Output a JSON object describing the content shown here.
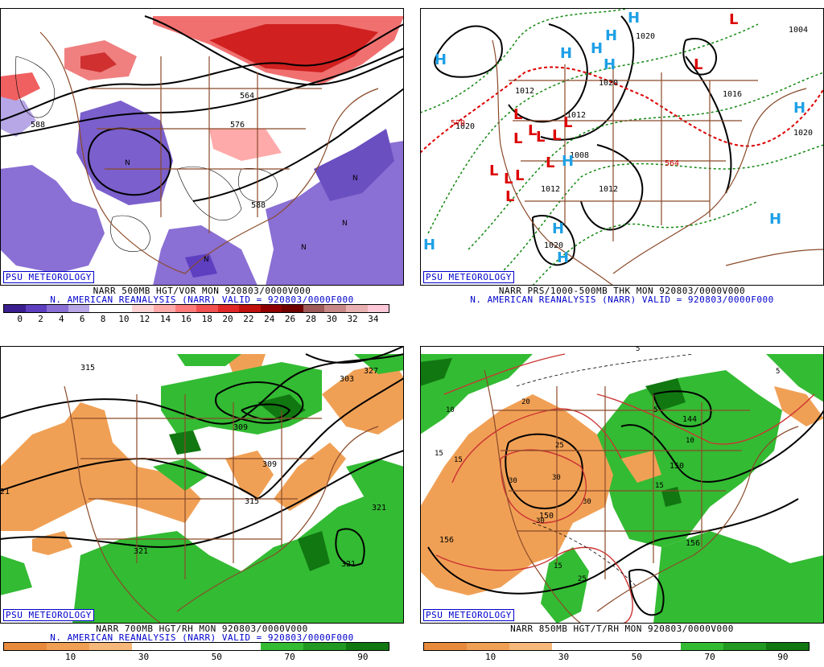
{
  "panels": [
    {
      "psu": "PSU METEOROLOGY",
      "line1": "NARR 500MB HGT/VOR MON 920803/0000V000",
      "line2": "N. AMERICAN REANALYSIS (NARR) VALID = 920803/0000F000",
      "colorbar": [
        "#3b1f8f",
        "#5d3fc0",
        "#8a6fd4",
        "#b7a7e6",
        "#ffffff",
        "#ffffff",
        "#ffd3d3",
        "#ffaaaa",
        "#ff7b7b",
        "#f05050",
        "#e02828",
        "#c01010",
        "#900000",
        "#700000",
        "#a05a5a",
        "#c88888",
        "#e8b0b0",
        "#ffc8d8"
      ],
      "ticks": [
        "0",
        "2",
        "4",
        "6",
        "8",
        "10",
        "12",
        "14",
        "16",
        "18",
        "20",
        "22",
        "24",
        "26",
        "28",
        "30",
        "32",
        "34"
      ],
      "labels": {
        "c588": "588",
        "c564": "564",
        "c576": "576",
        "c588b": "588"
      }
    },
    {
      "psu": "PSU METEOROLOGY",
      "line1": "NARR PRS/1000-500MB THK MON 920803/0000V000",
      "line2": "N. AMERICAN REANALYSIS (NARR) VALID = 920803/0000F000",
      "labels": {
        "p1020a": "1020",
        "p1020b": "1020",
        "p1020c": "1020",
        "p1012a": "1012",
        "p1012b": "1012",
        "p1012c": "1012",
        "p1012d": "1012",
        "p1004": "1004",
        "p1016": "1016",
        "p1020d": "1020",
        "p1020e": "1020",
        "t570": "570",
        "t564": "564",
        "p1008": "1008"
      },
      "highs": "H",
      "lows": "L"
    },
    {
      "psu": "PSU METEOROLOGY",
      "line1": "NARR 700MB HGT/RH MON 920803/0000V000",
      "line2": "N. AMERICAN REANALYSIS (NARR) VALID = 920803/0000F000",
      "colorbar": [
        "#e88a3c",
        "#f0a055",
        "#f5b87a",
        "#ffffff",
        "#ffffff",
        "#ffffff",
        "#33bb33",
        "#229922",
        "#117711"
      ],
      "ticks": [
        "10",
        "30",
        "50",
        "70",
        "90"
      ],
      "labels": {
        "h315a": "315",
        "h303": "303",
        "h309a": "309",
        "h309b": "309",
        "h315b": "315",
        "h321a": "321",
        "h321b": "321",
        "h321c": "321",
        "h327": "327",
        "h21": "21"
      }
    },
    {
      "psu": "PSU METEOROLOGY",
      "line1": "NARR 850MB HGT/T/RH MON 920803/0000V000",
      "colorbar": [
        "#e88a3c",
        "#f0a055",
        "#f5b87a",
        "#ffffff",
        "#ffffff",
        "#ffffff",
        "#33bb33",
        "#229922",
        "#117711"
      ],
      "ticks": [
        "10",
        "30",
        "50",
        "70",
        "90"
      ],
      "labels": {
        "z150a": "150",
        "z144": "144",
        "z156a": "156",
        "z156b": "156",
        "z150b": "150",
        "tk10a": "10",
        "tk15a": "15",
        "tk20": "20",
        "tk25a": "25",
        "tk30a": "30",
        "tk30b": "30",
        "tk30c": "30",
        "tk30d": "30",
        "tk15b": "15",
        "tk15c": "15",
        "tk25b": "25",
        "tk10b": "10",
        "tk5a": "5",
        "tk5b": "5",
        "tk5c": "5",
        "tk15d": "15"
      }
    }
  ]
}
